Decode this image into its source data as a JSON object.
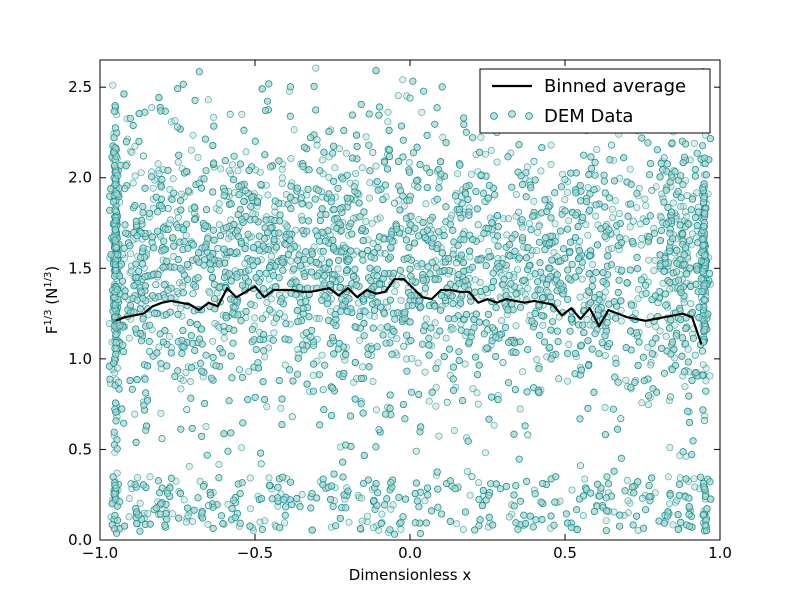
{
  "chart_data": {
    "type": "scatter",
    "title": "",
    "xlabel": "Dimensionless x",
    "ylabel_parts": {
      "base": "F",
      "exp": "1/3",
      "mid": " (N",
      "exp2": "1/3",
      "end": ")"
    },
    "xlim": [
      -1.0,
      1.0
    ],
    "ylim": [
      0.0,
      2.65
    ],
    "x_ticks": [
      -1.0,
      -0.5,
      0.0,
      0.5,
      1.0
    ],
    "x_tick_labels": [
      "−1.0",
      "−0.5",
      "0.0",
      "0.5",
      "1.0"
    ],
    "y_ticks": [
      0.0,
      0.5,
      1.0,
      1.5,
      2.0,
      2.5
    ],
    "y_tick_labels": [
      "0.0",
      "0.5",
      "1.0",
      "1.5",
      "2.0",
      "2.5"
    ],
    "grid": false,
    "legend_position": "top-right",
    "series": [
      {
        "name": "Binned average",
        "kind": "line",
        "color": "#000000",
        "x": [
          -0.95,
          -0.92,
          -0.89,
          -0.86,
          -0.83,
          -0.8,
          -0.77,
          -0.74,
          -0.71,
          -0.68,
          -0.65,
          -0.62,
          -0.59,
          -0.56,
          -0.53,
          -0.5,
          -0.47,
          -0.44,
          -0.41,
          -0.38,
          -0.35,
          -0.32,
          -0.29,
          -0.26,
          -0.23,
          -0.2,
          -0.17,
          -0.14,
          -0.11,
          -0.08,
          -0.05,
          -0.02,
          0.01,
          0.04,
          0.07,
          0.1,
          0.13,
          0.16,
          0.19,
          0.22,
          0.25,
          0.28,
          0.31,
          0.34,
          0.37,
          0.4,
          0.43,
          0.46,
          0.49,
          0.52,
          0.55,
          0.58,
          0.61,
          0.64,
          0.67,
          0.7,
          0.73,
          0.76,
          0.79,
          0.82,
          0.85,
          0.88,
          0.91,
          0.94
        ],
        "y": [
          1.21,
          1.23,
          1.24,
          1.25,
          1.29,
          1.31,
          1.32,
          1.31,
          1.3,
          1.27,
          1.31,
          1.29,
          1.39,
          1.34,
          1.37,
          1.4,
          1.34,
          1.38,
          1.38,
          1.38,
          1.37,
          1.37,
          1.38,
          1.39,
          1.35,
          1.39,
          1.34,
          1.38,
          1.36,
          1.37,
          1.44,
          1.44,
          1.39,
          1.34,
          1.33,
          1.38,
          1.38,
          1.37,
          1.37,
          1.31,
          1.33,
          1.31,
          1.33,
          1.32,
          1.31,
          1.32,
          1.31,
          1.3,
          1.24,
          1.28,
          1.22,
          1.28,
          1.18,
          1.27,
          1.25,
          1.23,
          1.22,
          1.21,
          1.22,
          1.23,
          1.24,
          1.25,
          1.23,
          1.08
        ]
      },
      {
        "name": "DEM Data",
        "kind": "scatter",
        "color": "#008080",
        "fill": "#b2dcd8",
        "approx_point_count": 8000,
        "point_x": [
          -0.95,
          -0.94,
          -0.92,
          -0.9,
          -0.88,
          -0.86,
          -0.84,
          -0.82,
          -0.8,
          -0.78,
          -0.75,
          -0.72,
          -0.7,
          -0.68,
          -0.65,
          -0.62,
          -0.6,
          -0.58,
          -0.55,
          -0.52,
          -0.5,
          -0.48,
          -0.45,
          -0.42,
          -0.4,
          -0.38,
          -0.35,
          -0.32,
          -0.3,
          -0.28,
          -0.25,
          -0.22,
          -0.2,
          -0.18,
          -0.15,
          -0.12,
          -0.1,
          -0.08,
          -0.05,
          -0.02,
          0.0,
          0.02,
          0.05,
          0.08,
          0.1,
          0.12,
          0.15,
          0.18,
          0.2,
          0.22,
          0.25,
          0.28,
          0.3,
          0.32,
          0.35,
          0.38,
          0.4,
          0.42,
          0.45,
          0.48,
          0.5,
          0.52,
          0.55,
          0.58,
          0.6,
          0.62,
          0.65,
          0.68,
          0.7,
          0.72,
          0.75,
          0.78,
          0.8,
          0.82,
          0.84,
          0.86,
          0.88,
          0.9,
          0.92,
          0.94,
          0.95
        ],
        "point_y": [
          1.52,
          0.87,
          1.94,
          0.31,
          1.68,
          2.12,
          1.04,
          1.41,
          0.56,
          1.83,
          2.28,
          0.72,
          1.36,
          1.97,
          0.19,
          1.61,
          1.18,
          2.35,
          0.94,
          1.49,
          1.77,
          0.42,
          2.06,
          1.25,
          1.63,
          0.68,
          1.89,
          1.12,
          2.21,
          0.83,
          1.44,
          1.71,
          0.27,
          1.95,
          1.33,
          2.14,
          0.61,
          1.58,
          1.86,
          1.07,
          2.44,
          0.49,
          1.67,
          1.29,
          2.02,
          0.76,
          1.53,
          1.91,
          0.35,
          1.74,
          1.16,
          2.25,
          0.98,
          1.46,
          1.81,
          0.58,
          2.09,
          1.38,
          1.64,
          0.89,
          1.99,
          1.22,
          0.41,
          1.57,
          1.85,
          1.09,
          2.18,
          0.67,
          1.42,
          1.76,
          0.23,
          1.93,
          1.31,
          2.11,
          0.79,
          1.48,
          1.69,
          0.14,
          1.02,
          1.54,
          0.66
        ]
      }
    ]
  }
}
